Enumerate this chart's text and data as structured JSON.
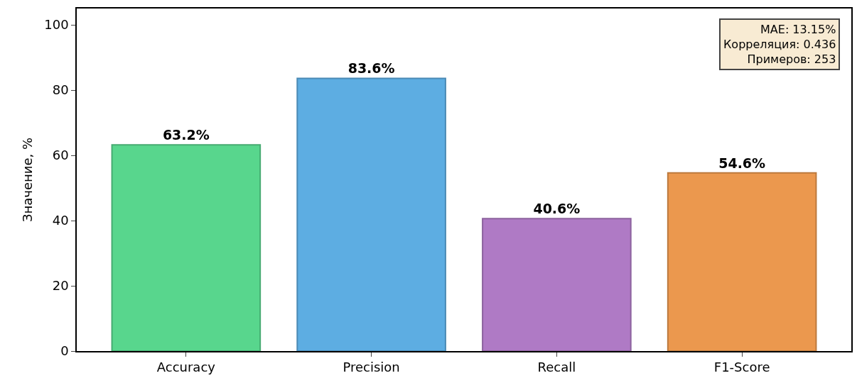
{
  "chart_data": {
    "type": "bar",
    "ylabel": "Значение, %",
    "categories": [
      "Accuracy",
      "Precision",
      "Recall",
      "F1-Score"
    ],
    "values": [
      63.2,
      83.6,
      40.6,
      54.6
    ],
    "value_labels": [
      "63.2%",
      "83.6%",
      "40.6%",
      "54.6%"
    ],
    "colors": [
      "#58d68d",
      "#5dade2",
      "#af7ac5",
      "#eb984e"
    ],
    "ylim": [
      0,
      105
    ],
    "yticks": [
      0,
      20,
      40,
      60,
      80,
      100
    ],
    "grid": false,
    "legend": false,
    "annotations": [
      "MAE: 13.15%\nКорреляция: 0.436\nПримеров: 253"
    ]
  }
}
